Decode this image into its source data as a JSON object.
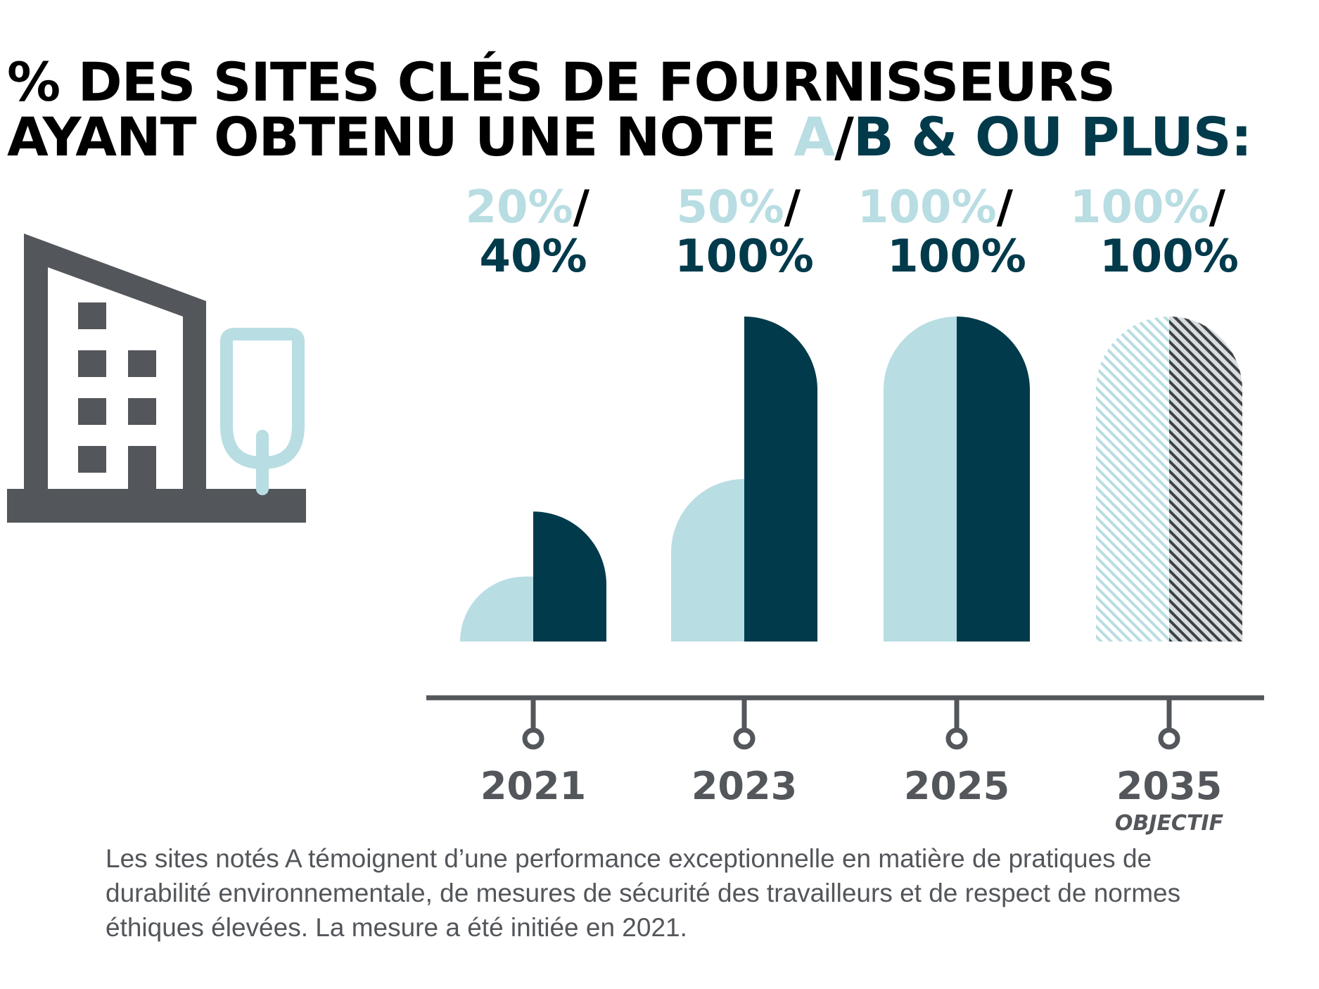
{
  "title": {
    "line1": "% DES SITES CLÉS DE FOURNISSEURS",
    "line2_prefix": "AYANT OBTENU UNE NOTE ",
    "line2_a": "A",
    "line2_slash": "/",
    "line2_b": "B & OU PLUS:"
  },
  "caption": "Les sites notés A témoignent d’une performance exceptionnelle en matière de pratiques de durabilité environnementale, de mesures de sécurité des travailleurs et de respect de normes éthiques élevées. La mesure a été initiée en 2021.",
  "chart_data": {
    "type": "bar",
    "categories": [
      "2021",
      "2023",
      "2025",
      "2035"
    ],
    "category_notes": [
      "",
      "",
      "",
      "OBJECTIF"
    ],
    "series": [
      {
        "name": "A",
        "values": [
          20,
          50,
          100,
          100
        ]
      },
      {
        "name": "B & OU PLUS",
        "values": [
          40,
          100,
          100,
          100
        ]
      }
    ],
    "value_labels": [
      {
        "a": "20%",
        "b": "40%"
      },
      {
        "a": "50%",
        "b": "100%"
      },
      {
        "a": "100%",
        "b": "100%"
      },
      {
        "a": "100%",
        "b": "100%"
      }
    ],
    "slash": "/",
    "hatched_categories": [
      "2035"
    ],
    "ylim": [
      0,
      100
    ],
    "colors": {
      "a": "#b8dde2",
      "b": "#003a4b",
      "axis": "#53565a"
    }
  },
  "icon": {
    "name": "building-tree-icon",
    "colors": {
      "building": "#53565a",
      "tree": "#b8dde2"
    }
  }
}
